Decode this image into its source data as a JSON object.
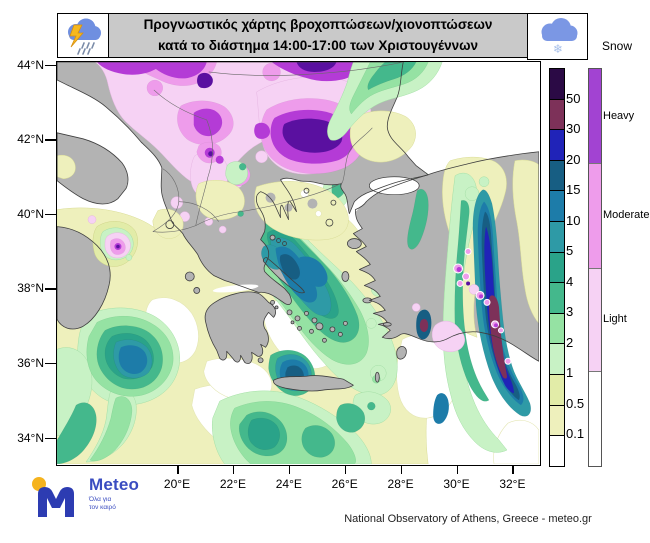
{
  "title": {
    "line1": "Προγνωστικός χάρτης βροχοπτώσεων/χιονοπτώσεων",
    "line2": "κατά το διάστημα 14:00-17:00 των Χριστουγέννων"
  },
  "axes": {
    "lat": [
      "44°N",
      "42°N",
      "40°N",
      "38°N",
      "36°N",
      "34°N"
    ],
    "lon": [
      "20°E",
      "22°E",
      "24°E",
      "26°E",
      "28°E",
      "30°E",
      "32°E"
    ]
  },
  "legend": {
    "snow_title": "Snow",
    "rain_ticks": [
      "50",
      "30",
      "20",
      "15",
      "10",
      "5",
      "4",
      "3",
      "2",
      "1",
      "0.5",
      "0.1"
    ],
    "rain_colors": [
      "#2b0a45",
      "#7d3159",
      "#2023b8",
      "#175e83",
      "#1d7ca9",
      "#2e9aa6",
      "#2aa389",
      "#44b88c",
      "#95e2a3",
      "#c8f2c5",
      "#e2eca8",
      "#eef0bc",
      "#ffffff"
    ],
    "snow_labels": [
      "Heavy",
      "Moderate",
      "Light"
    ],
    "snow_colors": [
      "#a243d2",
      "#ee9ceb",
      "#f6d2f4",
      "#ffffff"
    ],
    "snow_seg_heights": [
      95,
      104,
      103,
      95
    ]
  },
  "branding": {
    "name": "Meteo",
    "tagline1": "Όλα για",
    "tagline2": "τον καιρό"
  },
  "attribution": "National Observatory of Athens, Greece - meteo.gr",
  "icons": {
    "snowflake_glyph": "❄"
  },
  "map_colors": {
    "land": "#b3b3b3",
    "sea": "#ffffff",
    "y01": "#eef0bc",
    "y05": "#e2eca8",
    "g1": "#c8f2c5",
    "g2": "#95e2a3",
    "g3": "#44b88c",
    "g4": "#2aa389",
    "t5": "#2e9aa6",
    "b10": "#1d7ca9",
    "b15": "#175e83",
    "b20": "#2023b8",
    "m30": "#7d3159",
    "v50": "#2b0a45",
    "snowL": "#f6d2f4",
    "snowM": "#ee9ceb",
    "snowH": "#b43bd6",
    "snowV": "#5a10a0"
  }
}
